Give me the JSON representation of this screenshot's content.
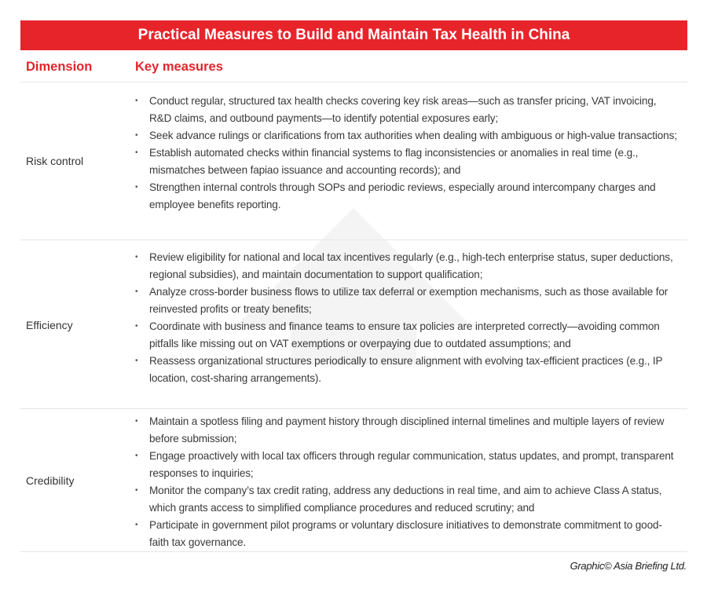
{
  "title": "Practical Measures to Build and Maintain Tax Health in China",
  "headers": {
    "dimension": "Dimension",
    "measures": "Key measures"
  },
  "rows": [
    {
      "dimension": "Risk control",
      "measures": [
        "Conduct regular, structured tax health checks covering key risk areas—such as transfer pricing, VAT invoicing, R&D claims, and outbound payments—to identify potential exposures early;",
        "Seek advance rulings or clarifications from tax authorities when dealing with ambiguous or high-value transactions;",
        "Establish automated checks within financial systems to flag inconsistencies or anomalies in real time (e.g., mismatches between fapiao issuance and accounting records); and",
        "Strengthen internal controls through SOPs and periodic reviews, especially around intercompany charges and employee benefits reporting."
      ]
    },
    {
      "dimension": "Efficiency",
      "measures": [
        "Review eligibility for national and local tax incentives regularly (e.g., high-tech enterprise status, super deductions, regional subsidies), and maintain documentation to support qualification;",
        "Analyze cross-border business flows to utilize tax deferral or exemption mechanisms, such as those available for reinvested profits or treaty benefits;",
        "Coordinate with business and finance teams to ensure tax policies are interpreted correctly—avoiding common pitfalls like missing out on VAT exemptions or overpaying due to outdated assumptions; and",
        "Reassess organizational structures periodically to ensure alignment with evolving tax-efficient practices (e.g., IP location, cost-sharing arrangements)."
      ]
    },
    {
      "dimension": "Credibility",
      "measures": [
        "Maintain a spotless filing and payment history through disciplined internal timelines and multiple layers of review before submission;",
        "Engage proactively with local tax officers through regular communication, status updates, and prompt, transparent responses to inquiries;",
        "Monitor the company’s tax credit rating, address any deductions in real time, and aim to achieve Class A status, which grants access to simplified compliance procedures and reduced scrutiny; and",
        "Participate in government pilot programs or voluntary disclosure initiatives to demonstrate commitment to good-faith tax governance."
      ]
    }
  ],
  "credit": "Graphic© Asia Briefing Ltd.",
  "colors": {
    "accent": "#e8242b",
    "header_text": "#e2262c"
  }
}
